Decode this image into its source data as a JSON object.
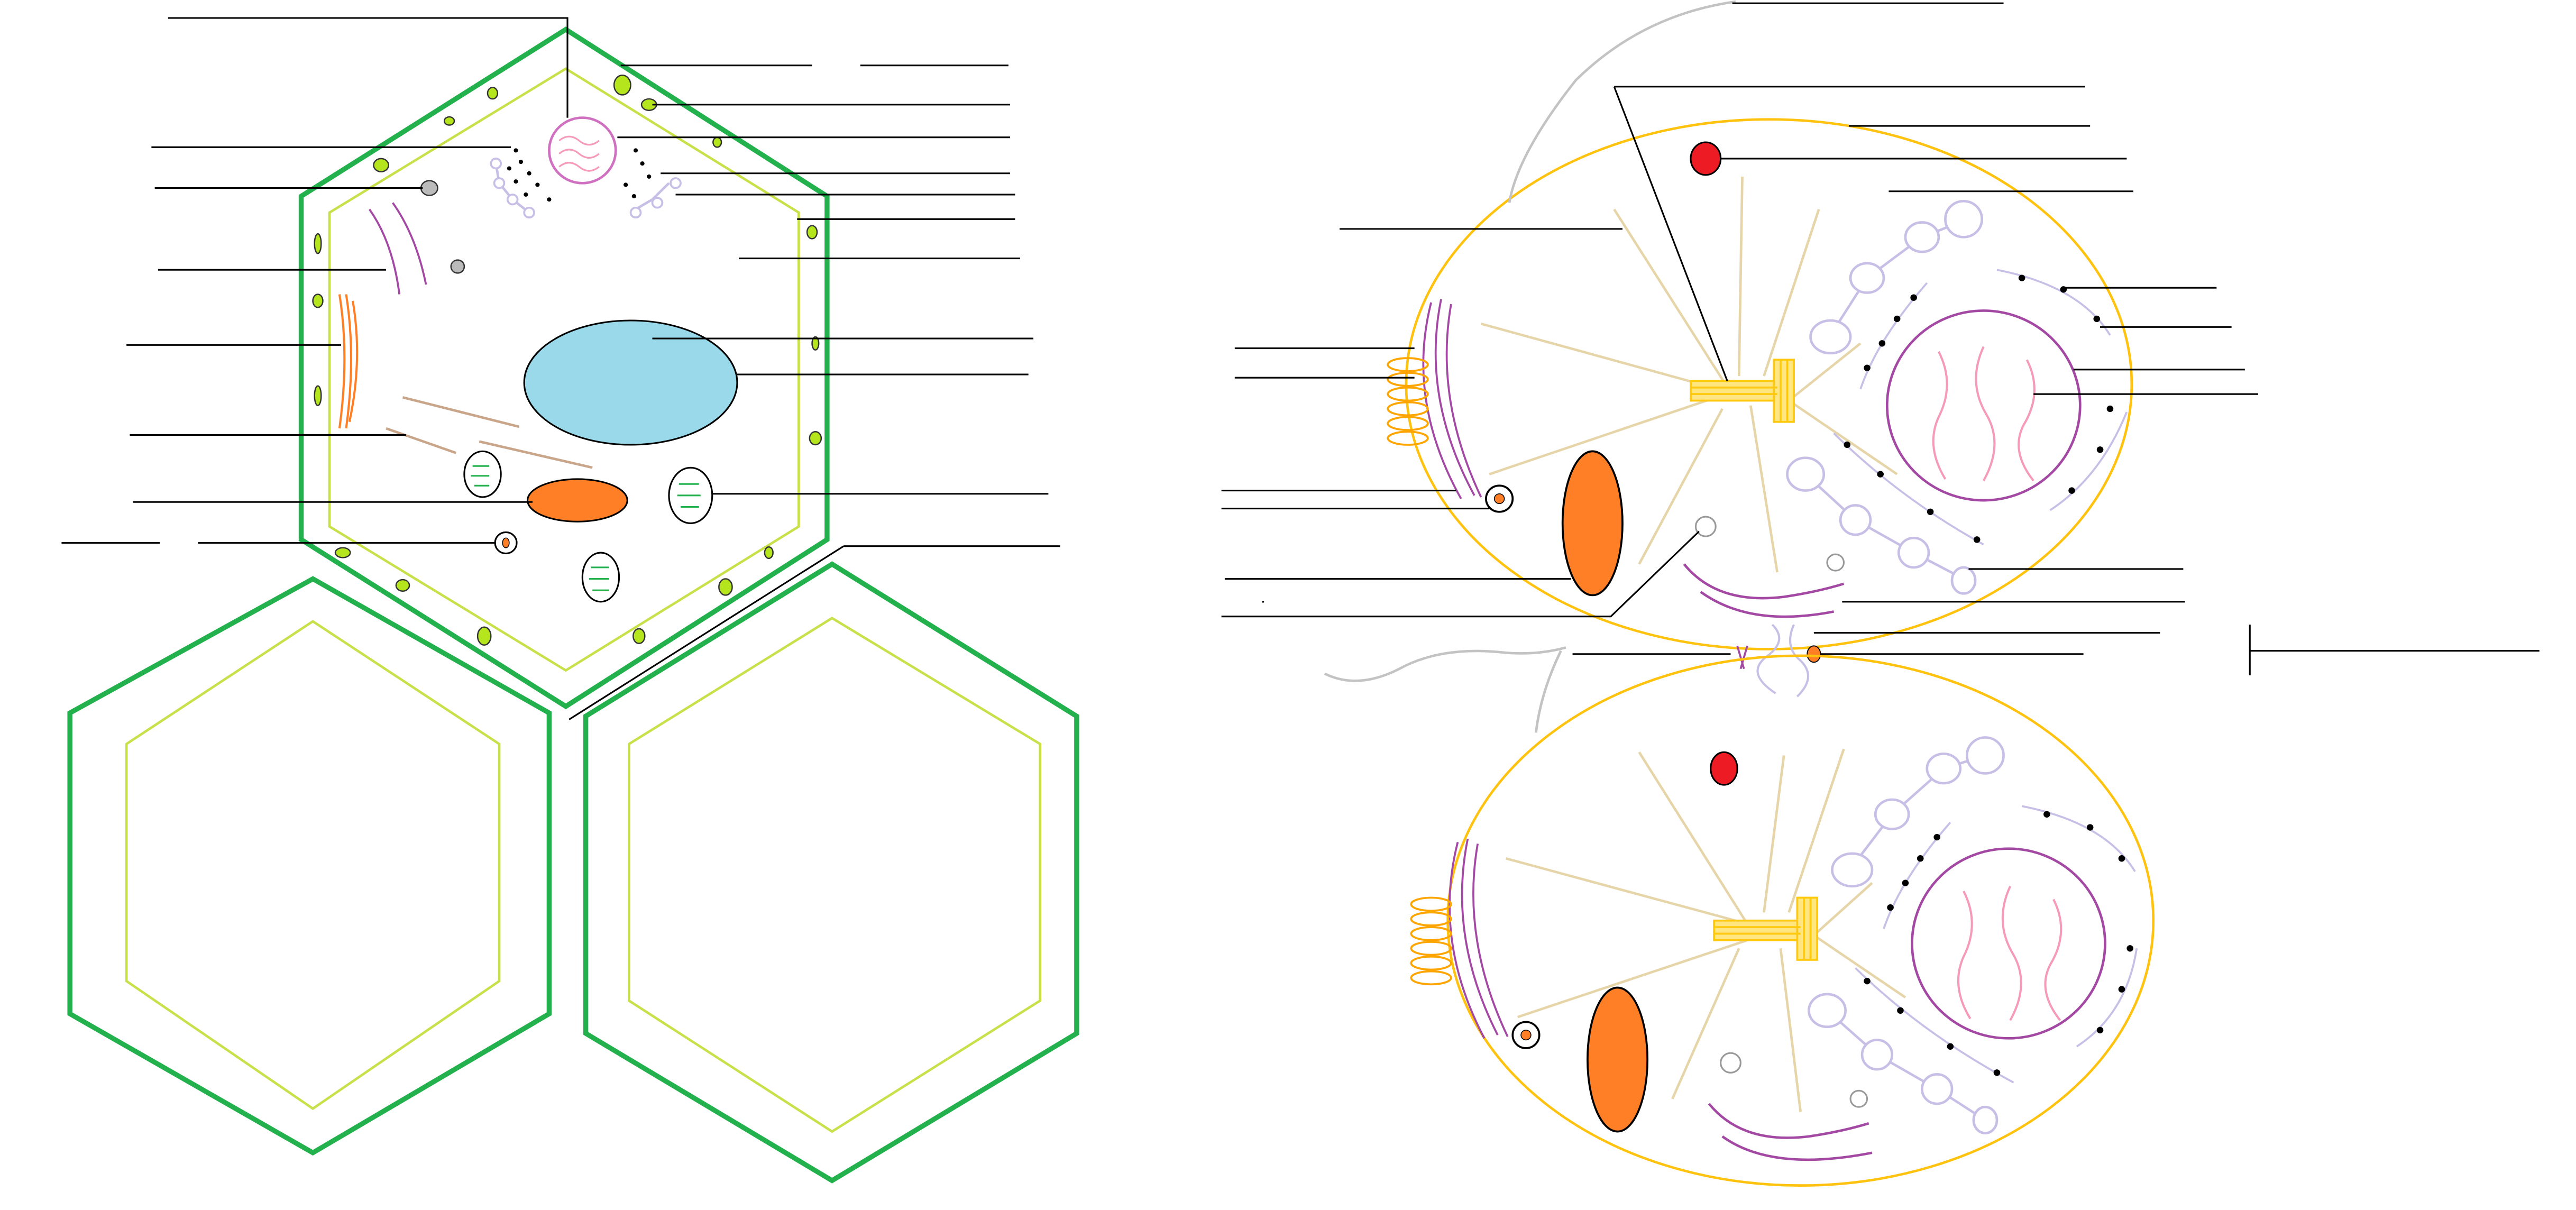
{
  "title": "",
  "plant_cell": {
    "labels": [
      "",
      "",
      "",
      "",
      "",
      "",
      "",
      "",
      "",
      "",
      "",
      "",
      "",
      "",
      "",
      "",
      "",
      "",
      "",
      "",
      "",
      "",
      ""
    ]
  },
  "animal_cells": {
    "labels": [
      "",
      "",
      "",
      "",
      "",
      "",
      "",
      "",
      "",
      "",
      "",
      "",
      "",
      "",
      "",
      "",
      "",
      "",
      "",
      "",
      "",
      "",
      "",
      "",
      ""
    ]
  },
  "colors": {
    "cell_wall": "#22b14c",
    "cell_membrane_plant": "#c8e04a",
    "cell_membrane_animal": "#ffc20e",
    "vacuole": "#99d9ea",
    "mitochondrion": "#ff7f27",
    "nucleus": "#a349a4",
    "chromatin": "#f59ab8",
    "golgi": "#c8bfe7",
    "centrosome": "#ffc90e",
    "lysosome": "#ed1c24",
    "er": "#a349a4",
    "spindle": "#e6d5a8",
    "chloroplast": "#b5e61d",
    "leader_line": "#000000"
  }
}
